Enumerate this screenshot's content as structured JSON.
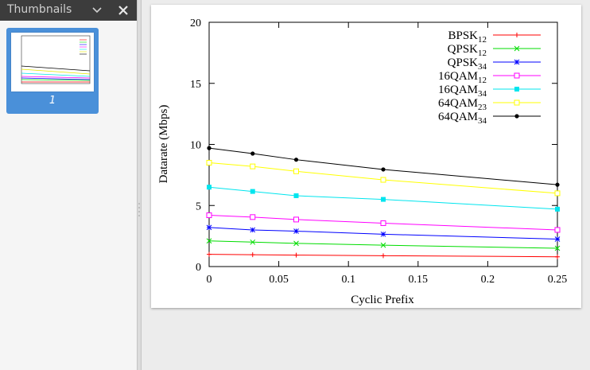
{
  "sidebar": {
    "title": "Thumbnails",
    "chevron_icon": "chevron-down-icon",
    "close_icon": "close-icon",
    "thumbnail": {
      "page_number": "1",
      "selected": true
    }
  },
  "colors": {
    "sidebar_header": "#3c3c3c",
    "selection": "#4a90d9",
    "doc_background": "#ececec"
  },
  "chart_data": {
    "type": "line",
    "xlabel": "Cyclic Prefix",
    "ylabel": "Datarate (Mbps)",
    "xlim": [
      0,
      0.25
    ],
    "ylim": [
      0,
      20
    ],
    "xticks": [
      "0",
      "0.05",
      "0.1",
      "0.15",
      "0.2",
      "0.25"
    ],
    "yticks": [
      "0",
      "5",
      "10",
      "15",
      "20"
    ],
    "grid": false,
    "legend_placement": "top-right",
    "x": [
      0,
      0.03125,
      0.0625,
      0.125,
      0.25
    ],
    "series": [
      {
        "name": "BPSK",
        "sub": "12",
        "color": "#ff0000",
        "marker": "plus",
        "values": [
          1.0,
          0.97,
          0.94,
          0.89,
          0.8
        ]
      },
      {
        "name": "QPSK",
        "sub": "12",
        "color": "#00dd00",
        "marker": "cross",
        "values": [
          2.1,
          2.0,
          1.9,
          1.75,
          1.5
        ]
      },
      {
        "name": "QPSK",
        "sub": "34",
        "color": "#0000ff",
        "marker": "star",
        "values": [
          3.2,
          3.0,
          2.9,
          2.65,
          2.25
        ]
      },
      {
        "name": "16QAM",
        "sub": "12",
        "color": "#ff00ff",
        "marker": "square-open",
        "values": [
          4.2,
          4.05,
          3.85,
          3.55,
          3.0
        ]
      },
      {
        "name": "16QAM",
        "sub": "34",
        "color": "#00e5ee",
        "marker": "square-filled",
        "values": [
          6.5,
          6.15,
          5.8,
          5.5,
          4.7
        ]
      },
      {
        "name": "64QAM",
        "sub": "23",
        "color": "#ffff00",
        "marker": "square-open",
        "values": [
          8.5,
          8.2,
          7.8,
          7.1,
          6.0
        ]
      },
      {
        "name": "64QAM",
        "sub": "34",
        "color": "#000000",
        "marker": "circle-filled",
        "values": [
          9.7,
          9.25,
          8.75,
          7.95,
          6.7
        ]
      }
    ]
  }
}
